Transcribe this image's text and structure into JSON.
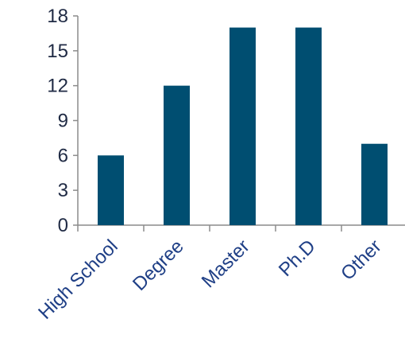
{
  "chart_data": {
    "type": "bar",
    "categories": [
      "High School",
      "Degree",
      "Master",
      "Ph.D",
      "Other"
    ],
    "values": [
      6,
      12,
      17,
      17,
      7
    ],
    "title": "",
    "xlabel": "",
    "ylabel": "",
    "ylim": [
      0,
      18
    ],
    "yticks": [
      0,
      3,
      6,
      9,
      12,
      15,
      18
    ],
    "grid": false,
    "legend": "none",
    "colors": {
      "bar": "#004e71",
      "axis": "#8c8c8c",
      "tick_text": "#1f2a44",
      "category_text": "#1f3f86"
    }
  }
}
